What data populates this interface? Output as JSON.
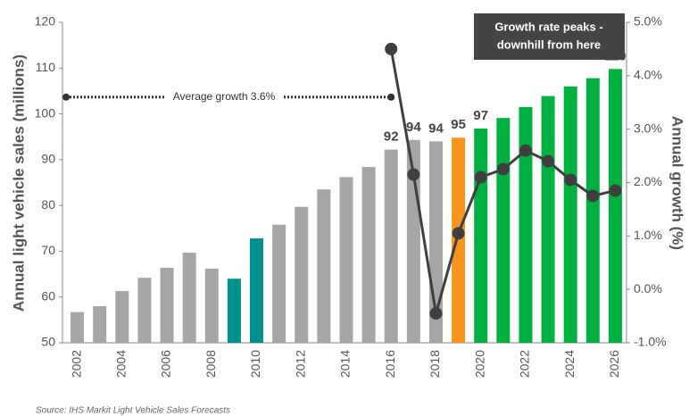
{
  "chart_data": {
    "type": "bar",
    "categories": [
      "2002",
      null,
      "2004",
      null,
      "2006",
      null,
      "2008",
      null,
      "2010",
      null,
      "2012",
      null,
      "2014",
      null,
      "2016",
      null,
      "2018",
      null,
      "2020",
      null,
      "2022",
      null,
      "2024",
      null,
      "2026"
    ],
    "series": [
      {
        "name": "Annual light vehicle sales",
        "type": "bar",
        "colors": [
          "#a6a6a6",
          "#a6a6a6",
          "#a6a6a6",
          "#a6a6a6",
          "#a6a6a6",
          "#a6a6a6",
          "#a6a6a6",
          "#00918e",
          "#00918e",
          "#a6a6a6",
          "#a6a6a6",
          "#a6a6a6",
          "#a6a6a6",
          "#a6a6a6",
          "#a6a6a6",
          "#a6a6a6",
          "#a6a6a6",
          "#f7941d",
          "#00b140",
          "#00b140",
          "#00b140",
          "#00b140",
          "#00b140",
          "#00b140",
          "#00b140"
        ],
        "values": [
          56.7,
          58,
          61.3,
          64.2,
          66.4,
          69.7,
          66.2,
          64,
          72.8,
          75.8,
          79.7,
          83.5,
          86.2,
          88.4,
          92.2,
          94.3,
          94,
          94.8,
          96.8,
          99.1,
          101.5,
          103.9,
          106,
          107.8,
          109.8
        ],
        "value_labels": [
          null,
          null,
          null,
          null,
          null,
          null,
          null,
          null,
          null,
          null,
          null,
          null,
          null,
          null,
          "92",
          "94",
          "94",
          "95",
          "97",
          null,
          null,
          null,
          null,
          null,
          "110"
        ]
      },
      {
        "name": "Annual growth",
        "type": "line",
        "axis": "y2",
        "color": "#3f3f3f",
        "values": [
          null,
          null,
          null,
          null,
          null,
          null,
          null,
          null,
          null,
          null,
          null,
          null,
          null,
          null,
          4.5,
          2.15,
          -0.45,
          1.05,
          2.1,
          2.25,
          2.6,
          2.4,
          2.05,
          1.75,
          1.85
        ]
      }
    ],
    "ylabel": "Annual light vehicle sales (millions)",
    "y2label": "Annual growth (%)",
    "ylim": [
      50,
      120
    ],
    "yticks": [
      50,
      60,
      70,
      80,
      90,
      100,
      110,
      120
    ],
    "y2lim": [
      -1,
      5
    ],
    "y2ticks": [
      {
        "value": -1,
        "label": "-1.0%"
      },
      {
        "value": 0,
        "label": "0.0%"
      },
      {
        "value": 1,
        "label": "1.0%"
      },
      {
        "value": 2,
        "label": "2.0%"
      },
      {
        "value": 3,
        "label": "3.0%"
      },
      {
        "value": 4,
        "label": "4.0%"
      },
      {
        "value": 5,
        "label": "5.0%"
      }
    ],
    "average_growth": {
      "label": "Average growth 3.6%",
      "value": 3.6
    },
    "callout": [
      "Growth rate peaks -",
      "downhill from here"
    ],
    "source": "Source: IHS Markit Light Vehicle Sales Forecasts"
  }
}
